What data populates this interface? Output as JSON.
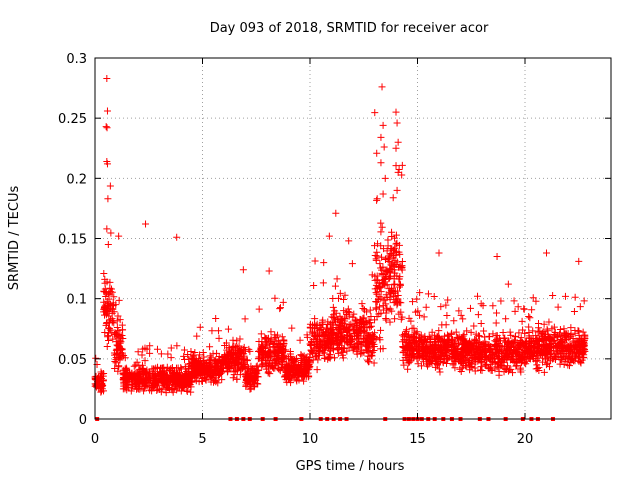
{
  "chart_data": {
    "type": "scatter",
    "title": "Day 093 of 2018, SRMTID for receiver acor",
    "xlabel": "GPS time / hours",
    "ylabel": "SRMTID / TECUs",
    "xlim": [
      0,
      24
    ],
    "ylim": [
      0,
      0.3
    ],
    "xticks": [
      0,
      5,
      10,
      15,
      20
    ],
    "xtick_labels": [
      "0",
      "5",
      "10",
      "15",
      "20"
    ],
    "yticks": [
      0,
      0.05,
      0.1,
      0.15,
      0.2,
      0.25,
      0.3
    ],
    "ytick_labels": [
      "0",
      "0.05",
      "0.1",
      "0.15",
      "0.2",
      "0.25",
      "0.3"
    ],
    "grid": true,
    "marker": "plus",
    "color": "#ff0000",
    "zero_markers_x": [
      0.1,
      6.3,
      6.6,
      6.9,
      7.2,
      7.8,
      8.4,
      9.6,
      10.5,
      10.8,
      11.1,
      11.4,
      11.7,
      13.5,
      14.4,
      14.6,
      14.8,
      15.0,
      15.2,
      15.5,
      15.8,
      16.2,
      16.6,
      17.0,
      17.9,
      18.3,
      19.1,
      19.9,
      20.3,
      20.6,
      21.3
    ],
    "series": [
      {
        "name": "SRMTID",
        "segments": [
          {
            "t0": 0.0,
            "t1": 0.4,
            "base": 0.03,
            "spread": 0.012
          },
          {
            "t0": 0.4,
            "t1": 0.9,
            "base": 0.09,
            "spread": 0.04
          },
          {
            "t0": 0.9,
            "t1": 1.3,
            "base": 0.06,
            "spread": 0.03
          },
          {
            "t0": 1.3,
            "t1": 4.5,
            "base": 0.033,
            "spread": 0.014
          },
          {
            "t0": 4.5,
            "t1": 6.0,
            "base": 0.042,
            "spread": 0.016
          },
          {
            "t0": 6.0,
            "t1": 7.0,
            "base": 0.05,
            "spread": 0.02
          },
          {
            "t0": 7.0,
            "t1": 7.6,
            "base": 0.035,
            "spread": 0.014
          },
          {
            "t0": 7.6,
            "t1": 8.8,
            "base": 0.055,
            "spread": 0.022
          },
          {
            "t0": 8.8,
            "t1": 10.0,
            "base": 0.042,
            "spread": 0.016
          },
          {
            "t0": 10.0,
            "t1": 11.0,
            "base": 0.065,
            "spread": 0.03
          },
          {
            "t0": 11.0,
            "t1": 12.5,
            "base": 0.07,
            "spread": 0.026
          },
          {
            "t0": 12.5,
            "t1": 13.0,
            "base": 0.065,
            "spread": 0.03
          },
          {
            "t0": 13.0,
            "t1": 13.6,
            "base": 0.11,
            "spread": 0.06
          },
          {
            "t0": 13.6,
            "t1": 14.3,
            "base": 0.12,
            "spread": 0.06
          },
          {
            "t0": 14.3,
            "t1": 15.0,
            "base": 0.06,
            "spread": 0.02
          },
          {
            "t0": 15.0,
            "t1": 17.0,
            "base": 0.058,
            "spread": 0.022
          },
          {
            "t0": 17.0,
            "t1": 20.0,
            "base": 0.055,
            "spread": 0.022
          },
          {
            "t0": 20.0,
            "t1": 21.5,
            "base": 0.06,
            "spread": 0.025
          },
          {
            "t0": 21.5,
            "t1": 22.8,
            "base": 0.06,
            "spread": 0.02
          }
        ],
        "peaks": [
          {
            "x": 0.55,
            "y": 0.283
          },
          {
            "x": 0.58,
            "y": 0.256
          },
          {
            "x": 0.52,
            "y": 0.243
          },
          {
            "x": 0.56,
            "y": 0.242
          },
          {
            "x": 0.55,
            "y": 0.214
          },
          {
            "x": 0.58,
            "y": 0.212
          },
          {
            "x": 0.6,
            "y": 0.183
          },
          {
            "x": 0.55,
            "y": 0.158
          },
          {
            "x": 0.62,
            "y": 0.145
          },
          {
            "x": 1.1,
            "y": 0.152
          },
          {
            "x": 2.35,
            "y": 0.162
          },
          {
            "x": 3.8,
            "y": 0.151
          },
          {
            "x": 6.9,
            "y": 0.124
          },
          {
            "x": 8.1,
            "y": 0.123
          },
          {
            "x": 11.2,
            "y": 0.171
          },
          {
            "x": 10.9,
            "y": 0.152
          },
          {
            "x": 11.8,
            "y": 0.148
          },
          {
            "x": 13.35,
            "y": 0.276
          },
          {
            "x": 13.4,
            "y": 0.244
          },
          {
            "x": 13.3,
            "y": 0.234
          },
          {
            "x": 13.45,
            "y": 0.226
          },
          {
            "x": 13.3,
            "y": 0.213
          },
          {
            "x": 13.5,
            "y": 0.2
          },
          {
            "x": 13.4,
            "y": 0.187
          },
          {
            "x": 14.0,
            "y": 0.255
          },
          {
            "x": 14.05,
            "y": 0.246
          },
          {
            "x": 14.1,
            "y": 0.23
          },
          {
            "x": 14.0,
            "y": 0.225
          },
          {
            "x": 14.1,
            "y": 0.205
          },
          {
            "x": 14.05,
            "y": 0.19
          },
          {
            "x": 16.0,
            "y": 0.138
          },
          {
            "x": 18.7,
            "y": 0.135
          },
          {
            "x": 21.0,
            "y": 0.138
          },
          {
            "x": 22.5,
            "y": 0.131
          },
          {
            "x": 15.1,
            "y": 0.105
          }
        ]
      }
    ]
  }
}
